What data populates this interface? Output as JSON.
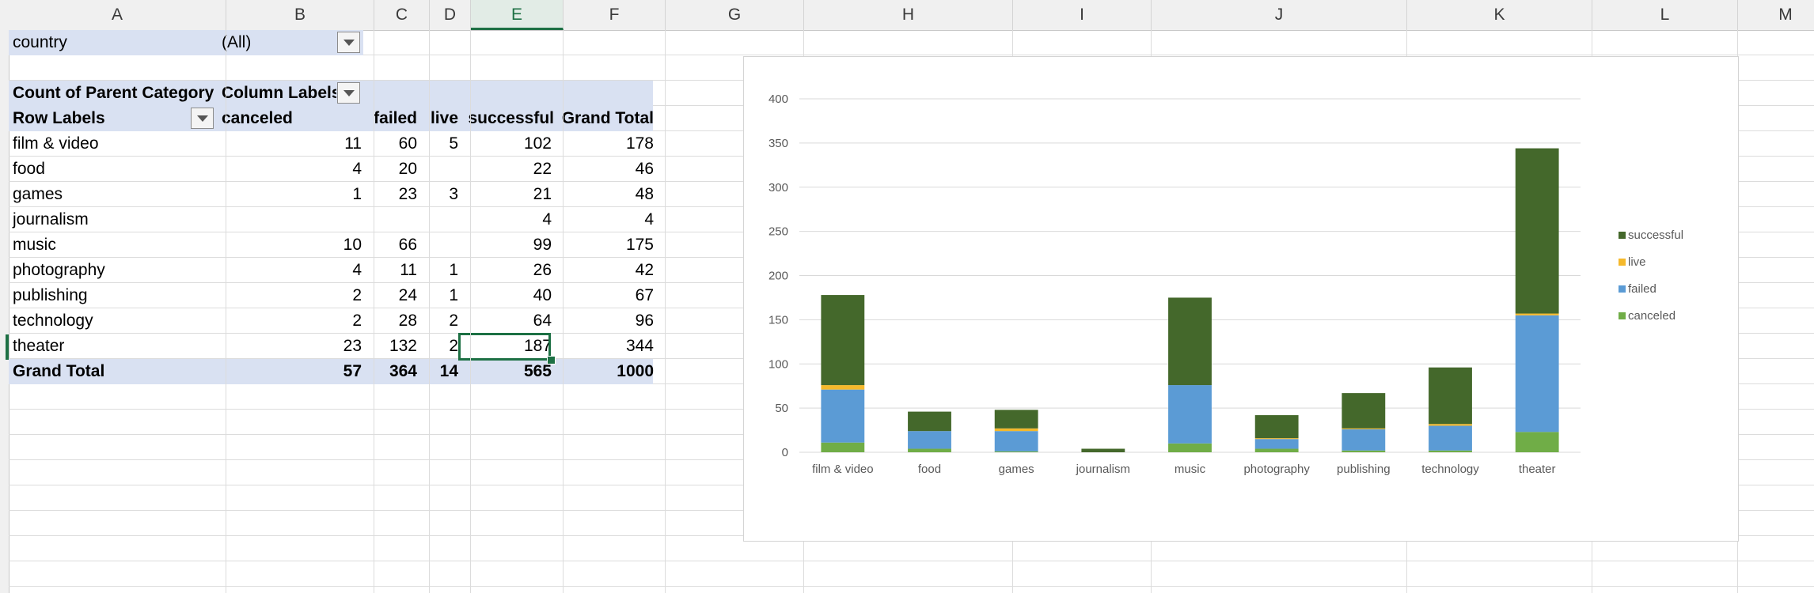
{
  "columns": [
    "A",
    "B",
    "C",
    "D",
    "E",
    "F",
    "G",
    "H",
    "I",
    "J",
    "K",
    "L",
    "M"
  ],
  "active_column": "E",
  "filter": {
    "label": "country",
    "value": "(All)"
  },
  "pivot": {
    "header_value_label": "Count of Parent Category",
    "column_labels": "Column Labels",
    "row_labels": "Row Labels",
    "col_headers": [
      "canceled",
      "failed",
      "live",
      "successful",
      "Grand Total"
    ],
    "rows": [
      {
        "category": "film & video",
        "canceled": "11",
        "failed": "60",
        "live": "5",
        "successful": "102",
        "total": "178"
      },
      {
        "category": "food",
        "canceled": "4",
        "failed": "20",
        "live": "",
        "successful": "22",
        "total": "46"
      },
      {
        "category": "games",
        "canceled": "1",
        "failed": "23",
        "live": "3",
        "successful": "21",
        "total": "48"
      },
      {
        "category": "journalism",
        "canceled": "",
        "failed": "",
        "live": "",
        "successful": "4",
        "total": "4"
      },
      {
        "category": "music",
        "canceled": "10",
        "failed": "66",
        "live": "",
        "successful": "99",
        "total": "175"
      },
      {
        "category": "photography",
        "canceled": "4",
        "failed": "11",
        "live": "1",
        "successful": "26",
        "total": "42"
      },
      {
        "category": "publishing",
        "canceled": "2",
        "failed": "24",
        "live": "1",
        "successful": "40",
        "total": "67"
      },
      {
        "category": "technology",
        "canceled": "2",
        "failed": "28",
        "live": "2",
        "successful": "64",
        "total": "96"
      },
      {
        "category": "theater",
        "canceled": "23",
        "failed": "132",
        "live": "2",
        "successful": "187",
        "total": "344"
      }
    ],
    "grand_total": {
      "label": "Grand Total",
      "canceled": "57",
      "failed": "364",
      "live": "14",
      "successful": "565",
      "total": "1000"
    }
  },
  "colors": {
    "successful": "#44682b",
    "live": "#f5b92c",
    "failed": "#5b9bd5",
    "canceled": "#70ad47",
    "selection": "#1d7044",
    "pivot_band": "#d9e1f2"
  },
  "chart_data": {
    "type": "bar",
    "stacked": true,
    "categories": [
      "film & video",
      "food",
      "games",
      "journalism",
      "music",
      "photography",
      "publishing",
      "technology",
      "theater"
    ],
    "series": [
      {
        "name": "canceled",
        "values": [
          11,
          4,
          1,
          0,
          10,
          4,
          2,
          2,
          23
        ]
      },
      {
        "name": "failed",
        "values": [
          60,
          20,
          23,
          0,
          66,
          11,
          24,
          28,
          132
        ]
      },
      {
        "name": "live",
        "values": [
          5,
          0,
          3,
          0,
          0,
          1,
          1,
          2,
          2
        ]
      },
      {
        "name": "successful",
        "values": [
          102,
          22,
          21,
          4,
          99,
          26,
          40,
          64,
          187
        ]
      }
    ],
    "ylim": [
      0,
      400
    ],
    "yticks": [
      0,
      50,
      100,
      150,
      200,
      250,
      300,
      350,
      400
    ],
    "legend_order": [
      "successful",
      "live",
      "failed",
      "canceled"
    ],
    "legend_position": "right",
    "grid": true
  }
}
